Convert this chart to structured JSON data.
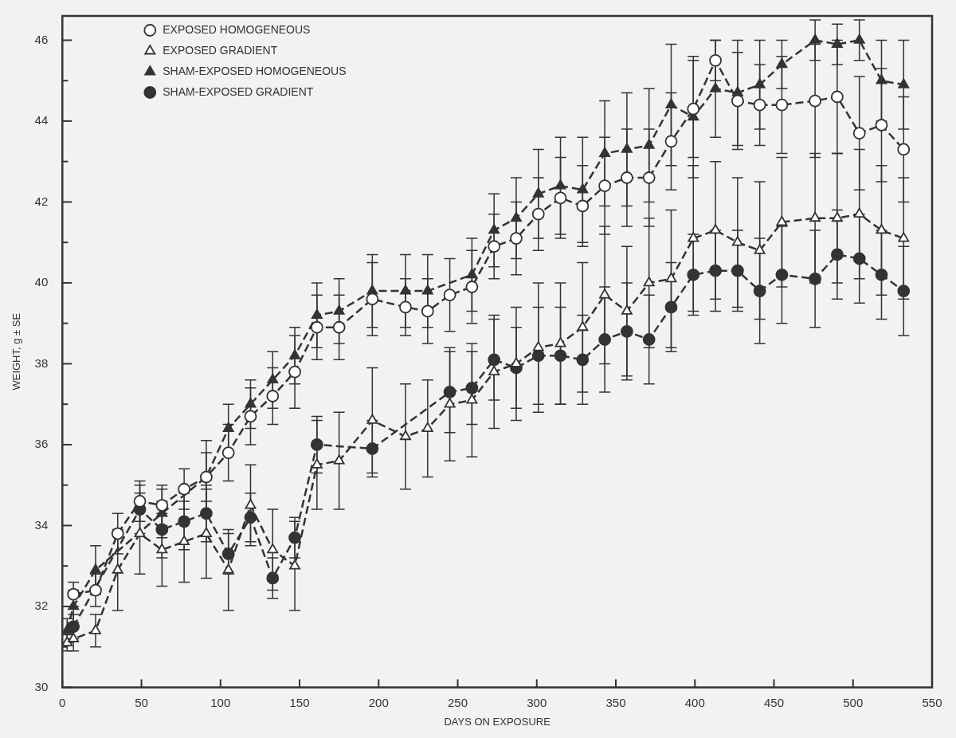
{
  "chart_data": {
    "type": "line",
    "xlabel": "DAYS ON EXPOSURE",
    "ylabel": "WEIGHT, g ± SE",
    "x": [
      3,
      7,
      21,
      35,
      49,
      63,
      77,
      91,
      105,
      119,
      133,
      147,
      161,
      175,
      196,
      217,
      231,
      245,
      259,
      273,
      287,
      301,
      315,
      329,
      343,
      357,
      371,
      385,
      399,
      413,
      427,
      441,
      455,
      476,
      490,
      504,
      518,
      532
    ],
    "series": [
      {
        "name": "EXPOSED HOMOGENEOUS",
        "color": "#ffffff",
        "marker": "circle",
        "values": [
          null,
          32.3,
          32.4,
          33.8,
          34.6,
          34.5,
          34.9,
          35.2,
          35.8,
          36.7,
          37.2,
          37.8,
          38.9,
          38.9,
          39.6,
          39.4,
          39.3,
          39.7,
          39.9,
          40.9,
          41.1,
          41.7,
          42.1,
          41.9,
          42.4,
          42.6,
          42.6,
          43.5,
          44.3,
          45.5,
          44.5,
          44.4,
          44.4,
          44.5,
          44.6,
          43.7,
          43.9,
          43.3
        ],
        "errors": [
          null,
          0.3,
          0.4,
          0.5,
          0.5,
          0.5,
          0.5,
          0.6,
          0.7,
          0.7,
          0.7,
          0.9,
          0.8,
          0.8,
          0.9,
          0.7,
          0.8,
          0.9,
          0.9,
          0.8,
          0.9,
          0.9,
          1.0,
          1.0,
          1.2,
          1.2,
          1.2,
          1.2,
          1.2,
          0.5,
          1.2,
          1.0,
          1.2,
          1.4,
          1.4,
          1.4,
          1.4,
          1.3
        ]
      },
      {
        "name": "EXPOSED GRADIENT",
        "color": "#ffffff",
        "marker": "triangle",
        "values": [
          31.1,
          31.2,
          31.4,
          32.9,
          33.8,
          33.4,
          33.6,
          33.8,
          32.9,
          34.5,
          33.4,
          33.0,
          35.5,
          35.6,
          36.6,
          36.2,
          36.4,
          37.0,
          37.1,
          37.8,
          38.0,
          38.4,
          38.5,
          38.9,
          39.7,
          39.3,
          40.0,
          40.1,
          41.1,
          41.3,
          41.0,
          40.8,
          41.5,
          41.6,
          41.6,
          41.7,
          41.3,
          41.1
        ],
        "errors": [
          0.2,
          0.3,
          0.4,
          1.0,
          1.0,
          0.9,
          1.0,
          1.1,
          1.0,
          1.0,
          1.0,
          1.1,
          1.1,
          1.2,
          1.3,
          1.3,
          1.2,
          1.4,
          1.4,
          1.4,
          1.4,
          1.6,
          1.5,
          1.6,
          1.7,
          1.6,
          1.6,
          1.7,
          1.8,
          1.7,
          1.6,
          1.7,
          1.6,
          1.6,
          1.6,
          1.6,
          1.6,
          1.5
        ]
      },
      {
        "name": "SHAM-EXPOSED HOMOGENEOUS",
        "color": "#333333",
        "marker": "triangle",
        "values": [
          31.4,
          32.0,
          32.9,
          null,
          null,
          34.3,
          null,
          35.2,
          36.4,
          37.0,
          37.6,
          38.2,
          39.2,
          39.3,
          39.8,
          39.8,
          39.8,
          null,
          40.2,
          41.3,
          41.6,
          42.2,
          42.4,
          42.3,
          43.2,
          43.3,
          43.4,
          44.4,
          44.1,
          44.8,
          44.7,
          44.9,
          45.4,
          46.0,
          45.9,
          46.0,
          45.0,
          44.9
        ],
        "errors": [
          0.3,
          0.4,
          0.6,
          null,
          null,
          0.6,
          null,
          0.9,
          0.6,
          0.6,
          0.7,
          0.7,
          0.8,
          0.8,
          0.9,
          0.9,
          0.9,
          null,
          0.9,
          0.9,
          1.0,
          1.1,
          1.2,
          1.3,
          1.3,
          1.4,
          1.4,
          1.5,
          1.5,
          1.2,
          1.3,
          1.1,
          0.6,
          0.5,
          0.5,
          0.5,
          1.0,
          1.1
        ]
      },
      {
        "name": "SHAM-EXPOSED GRADIENT",
        "color": "#333333",
        "marker": "circle",
        "values": [
          null,
          31.5,
          null,
          null,
          34.4,
          33.9,
          34.1,
          34.3,
          33.3,
          34.2,
          32.7,
          33.7,
          36.0,
          null,
          35.9,
          null,
          null,
          37.3,
          37.4,
          38.1,
          37.9,
          38.2,
          38.2,
          38.1,
          38.6,
          38.8,
          38.6,
          39.4,
          40.2,
          40.3,
          40.3,
          39.8,
          40.2,
          40.1,
          40.7,
          40.6,
          40.2,
          39.8
        ],
        "errors": [
          null,
          0.3,
          null,
          null,
          0.6,
          0.7,
          0.7,
          0.7,
          0.5,
          0.6,
          0.5,
          0.5,
          0.7,
          null,
          0.7,
          null,
          null,
          1.0,
          0.9,
          1.0,
          1.0,
          1.2,
          1.2,
          1.1,
          1.3,
          1.2,
          1.1,
          1.1,
          1.0,
          1.0,
          1.0,
          1.3,
          1.2,
          1.2,
          1.1,
          1.1,
          1.1,
          1.1
        ]
      }
    ],
    "xlim": [
      0,
      550
    ],
    "xticks": [
      0,
      50,
      100,
      150,
      200,
      250,
      300,
      350,
      400,
      450,
      500,
      550
    ],
    "ylim": [
      30,
      46.6
    ],
    "yticks": [
      30,
      {
        "value": 31,
        "label": null
      },
      32,
      {
        "value": 33,
        "label": null
      },
      34,
      {
        "value": 35,
        "label": null
      },
      36,
      {
        "value": 37,
        "label": null
      },
      38,
      {
        "value": 39,
        "label": null
      },
      40,
      {
        "value": 41,
        "label": null
      },
      42,
      {
        "value": 43,
        "label": null
      },
      44,
      {
        "value": 45,
        "label": null
      },
      46
    ],
    "grid": false,
    "legend": "top left",
    "line_style": "dashed"
  }
}
